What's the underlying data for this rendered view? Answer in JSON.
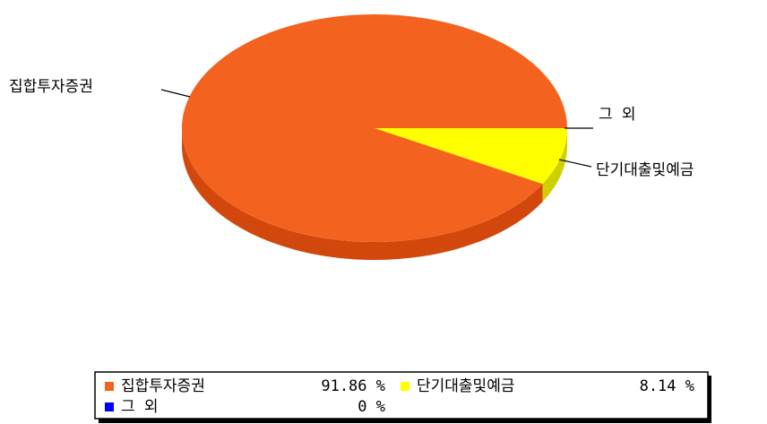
{
  "chart_data": {
    "type": "pie",
    "categories": [
      "집합투자증권",
      "단기대출및예금",
      "그 외"
    ],
    "values": [
      91.86,
      8.14,
      0
    ],
    "value_labels": [
      "91.86 %",
      "8.14 %",
      "0 %"
    ],
    "colors": [
      "#f4621f",
      "#ffff00",
      "#0000ff"
    ],
    "side_colors": [
      "#d2480c",
      "#d0d000",
      "#0000a0"
    ],
    "start_value": 8.14
  }
}
